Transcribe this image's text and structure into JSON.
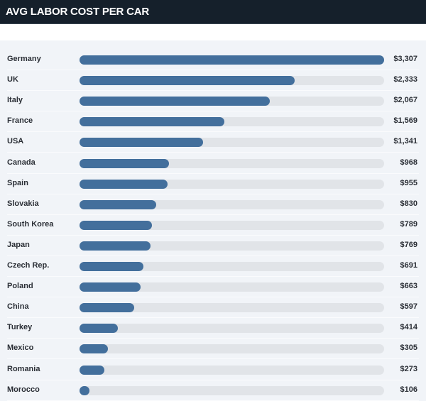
{
  "header": {
    "title": "AVG LABOR COST PER CAR"
  },
  "chart_data": {
    "type": "bar",
    "orientation": "horizontal",
    "categories": [
      "Germany",
      "UK",
      "Italy",
      "France",
      "USA",
      "Canada",
      "Spain",
      "Slovakia",
      "South Korea",
      "Japan",
      "Czech Rep.",
      "Poland",
      "China",
      "Turkey",
      "Mexico",
      "Romania",
      "Morocco"
    ],
    "values": [
      3307,
      2333,
      2067,
      1569,
      1341,
      968,
      955,
      830,
      789,
      769,
      691,
      663,
      597,
      414,
      305,
      273,
      106
    ],
    "labels": [
      "$3,307",
      "$2,333",
      "$2,067",
      "$1,569",
      "$1,341",
      "$968",
      "$955",
      "$830",
      "$789",
      "$769",
      "$691",
      "$663",
      "$597",
      "$414",
      "$305",
      "$273",
      "$106"
    ],
    "xlim": [
      0,
      3307
    ],
    "colors": {
      "bar": "#436f9c",
      "track": "#e1e4e8"
    }
  }
}
